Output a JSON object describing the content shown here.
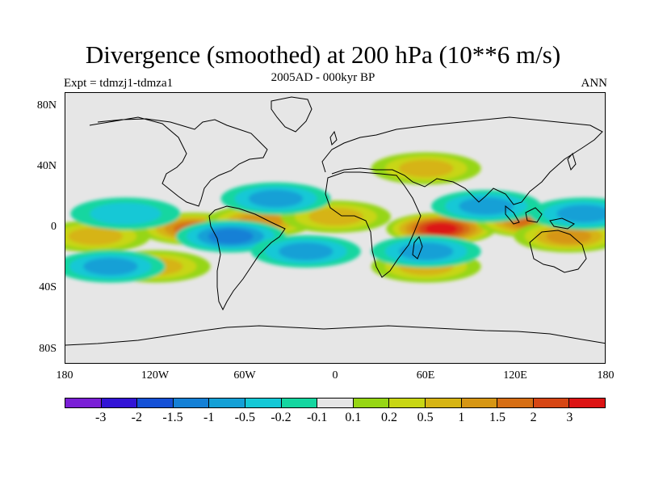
{
  "title": "Divergence (smoothed) at 200 hPa (10**6 m/s)",
  "subtitle": "2005AD - 000kyr BP",
  "experiment": "Expt = tdmzj1-tdmza1",
  "season": "ANN",
  "lat_labels": [
    "80N",
    "40N",
    "0",
    "40S",
    "80S"
  ],
  "lon_labels": [
    "180",
    "120W",
    "60W",
    "0",
    "60E",
    "120E",
    "180"
  ],
  "colorbar": {
    "colors": [
      "#7a1fd6",
      "#3214d6",
      "#1450d6",
      "#1480d6",
      "#14a0d6",
      "#14c8d6",
      "#14d6a0",
      "#e6e6e6",
      "#96d614",
      "#c8d614",
      "#d6b414",
      "#d69614",
      "#d66e14",
      "#d64614",
      "#dc1414"
    ],
    "labels": [
      "-3",
      "-2",
      "-1.5",
      "-1",
      "-0.5",
      "-0.2",
      "-0.1",
      "0.1",
      "0.2",
      "0.5",
      "1",
      "1.5",
      "2",
      "3"
    ]
  },
  "chart_data": {
    "type": "heatmap",
    "projection": "cylindrical equidistant",
    "variable": "Divergence (smoothed) at 200 hPa",
    "units": "10**6 m/s",
    "x_range": [
      -180,
      180
    ],
    "y_range": [
      -90,
      90
    ],
    "levels": [
      -3,
      -2,
      -1.5,
      -1,
      -0.5,
      -0.2,
      -0.1,
      0.1,
      0.2,
      0.5,
      1,
      1.5,
      2,
      3
    ],
    "features": [
      {
        "lon": 70,
        "lat": 0,
        "value": 3
      },
      {
        "lon": 130,
        "lat": 5,
        "value": 1.5
      },
      {
        "lon": 155,
        "lat": -5,
        "value": 1
      },
      {
        "lon": -95,
        "lat": 0,
        "value": 1.5
      },
      {
        "lon": -50,
        "lat": 5,
        "value": 1
      },
      {
        "lon": -160,
        "lat": -5,
        "value": 0.5
      },
      {
        "lon": 0,
        "lat": 8,
        "value": 0.5
      },
      {
        "lon": -120,
        "lat": -25,
        "value": 0.5
      },
      {
        "lon": 60,
        "lat": -25,
        "value": 0.5
      },
      {
        "lon": 60,
        "lat": 40,
        "value": 0.5
      },
      {
        "lon": -70,
        "lat": -5,
        "value": -1
      },
      {
        "lon": -20,
        "lat": -15,
        "value": -0.5
      },
      {
        "lon": 100,
        "lat": 15,
        "value": -0.5
      },
      {
        "lon": -150,
        "lat": -25,
        "value": -0.5
      },
      {
        "lon": 60,
        "lat": -15,
        "value": -0.5
      },
      {
        "lon": 165,
        "lat": 10,
        "value": -0.5
      },
      {
        "lon": -40,
        "lat": 20,
        "value": -0.5
      },
      {
        "lon": -140,
        "lat": 10,
        "value": -0.2
      }
    ]
  }
}
